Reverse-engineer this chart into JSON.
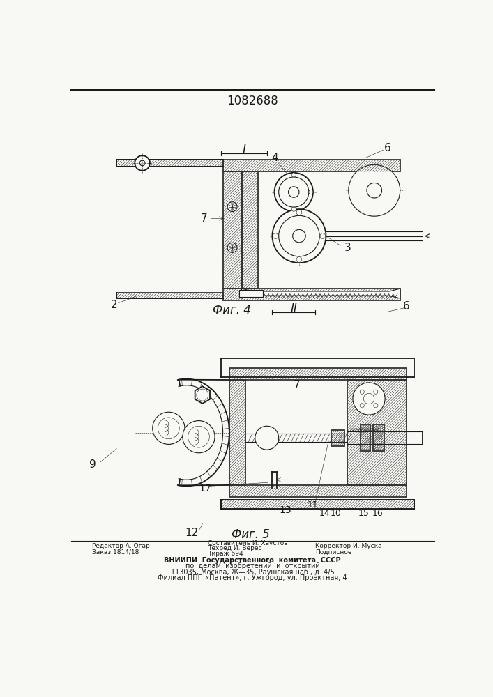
{
  "title": "1082688",
  "bg_color": "#f8f8f4",
  "fig4_caption": "Фиг. 4",
  "fig5_caption": "Фиг. 5",
  "footer_left_line1": "Редактор А. Огар",
  "footer_left_line2": "Заказ 1814/18",
  "footer_mid_line1": "Составитель И. Хаустов",
  "footer_mid_line2": "Техред И. Верес",
  "footer_mid_line3": "Тираж 694",
  "footer_right_line1": "Корректор И. Муска",
  "footer_right_line2": "Подписное",
  "footer_vniippi_1": "ВНИИПИ  Государственного  комитета  СССР",
  "footer_vniippi_2": "по  делам  изобретений  и  открытий",
  "footer_vniippi_3": "113035, Москва, Ж—35, Раушская наб., д. 4/5",
  "footer_vniippi_4": "Филиал ППП «Патент», г. Ужгород, ул. Проектная, 4",
  "label_I": "I",
  "label_II": "II"
}
